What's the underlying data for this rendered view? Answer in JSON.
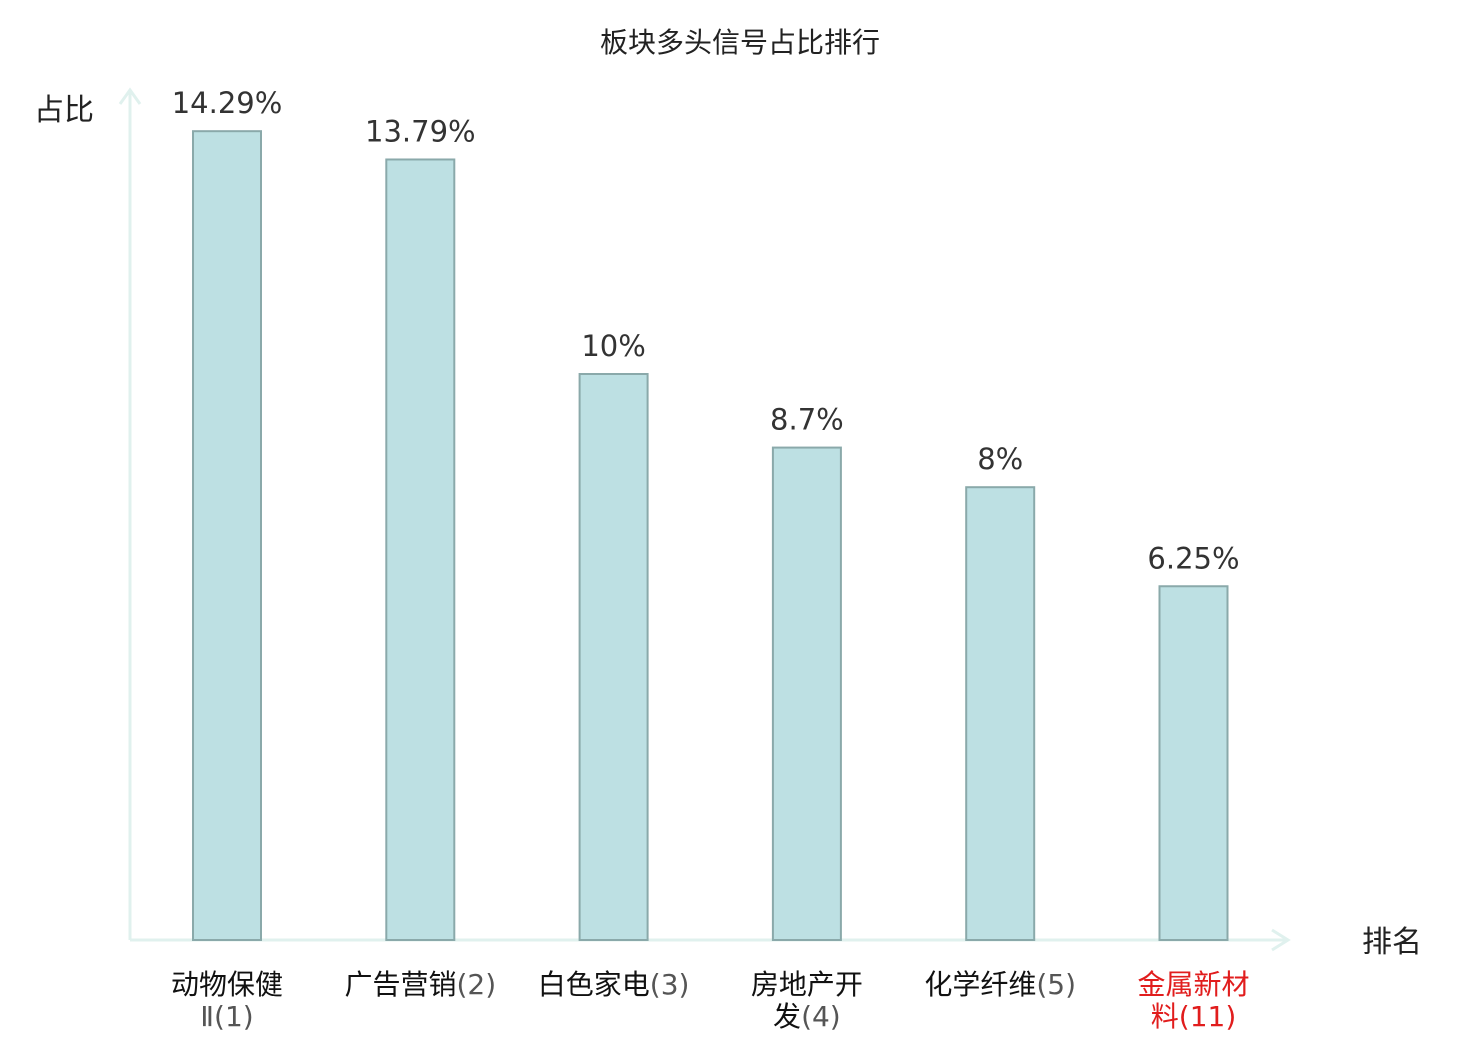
{
  "chart_data": {
    "type": "bar",
    "title": "板块多头信号占比排行",
    "xlabel": "排名",
    "ylabel": "占比",
    "categories": [
      {
        "lines": [
          {
            "name": "动物保健",
            "rank": ""
          },
          {
            "name": "",
            "rank": "Ⅱ(1)"
          }
        ],
        "highlight": false
      },
      {
        "lines": [
          {
            "name": "广告营销",
            "rank": "(2)"
          }
        ],
        "highlight": false
      },
      {
        "lines": [
          {
            "name": "白色家电",
            "rank": "(3)"
          }
        ],
        "highlight": false
      },
      {
        "lines": [
          {
            "name": "房地产开",
            "rank": ""
          },
          {
            "name": "发",
            "rank": "(4)"
          }
        ],
        "highlight": false
      },
      {
        "lines": [
          {
            "name": "化学纤维",
            "rank": "(5)"
          }
        ],
        "highlight": false
      },
      {
        "lines": [
          {
            "name": "金属新材",
            "rank": ""
          },
          {
            "name": "料",
            "rank": "(11)"
          }
        ],
        "highlight": true
      }
    ],
    "values": [
      14.29,
      13.79,
      10,
      8.7,
      8,
      6.25
    ],
    "value_labels": [
      "14.29%",
      "13.79%",
      "10%",
      "8.7%",
      "8%",
      "6.25%"
    ],
    "ylim": [
      0,
      15
    ],
    "grid": false,
    "legend": "none",
    "colors": {
      "bar_fill": "#bde0e3",
      "bar_stroke": "#8aa9aa",
      "axis": "#e0f1ee",
      "highlight": "#e11d1d"
    }
  }
}
